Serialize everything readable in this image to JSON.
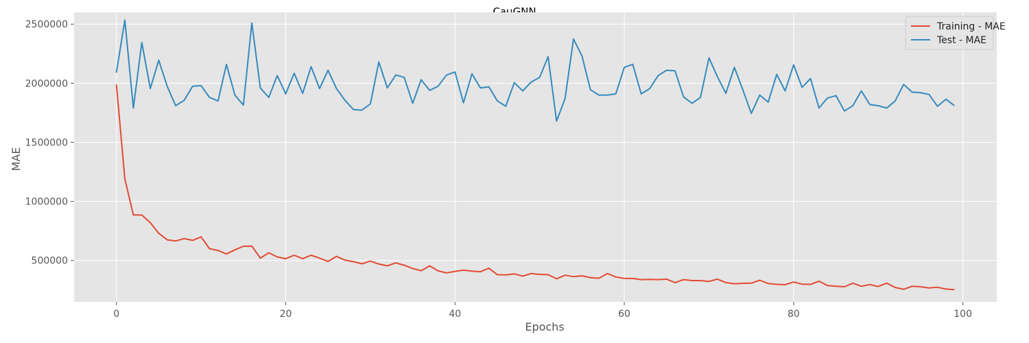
{
  "chart_data": {
    "type": "line",
    "title": "CauGNN",
    "xlabel": "Epochs",
    "ylabel": "MAE",
    "xlim": [
      -5,
      104
    ],
    "ylim": [
      150000,
      2600000
    ],
    "xticks": [
      0,
      20,
      40,
      60,
      80,
      100
    ],
    "yticks": [
      500000,
      1000000,
      1500000,
      2000000,
      2500000
    ],
    "grid": true,
    "legend": "top-right",
    "background": "#e5e5e5",
    "x": [
      0,
      1,
      2,
      3,
      4,
      5,
      6,
      7,
      8,
      9,
      10,
      11,
      12,
      13,
      14,
      15,
      16,
      17,
      18,
      19,
      20,
      21,
      22,
      23,
      24,
      25,
      26,
      27,
      28,
      29,
      30,
      31,
      32,
      33,
      34,
      35,
      36,
      37,
      38,
      39,
      40,
      41,
      42,
      43,
      44,
      45,
      46,
      47,
      48,
      49,
      50,
      51,
      52,
      53,
      54,
      55,
      56,
      57,
      58,
      59,
      60,
      61,
      62,
      63,
      64,
      65,
      66,
      67,
      68,
      69,
      70,
      71,
      72,
      73,
      74,
      75,
      76,
      77,
      78,
      79,
      80,
      81,
      82,
      83,
      84,
      85,
      86,
      87,
      88,
      89,
      90,
      91,
      92,
      93,
      94,
      95,
      96,
      97,
      98,
      99
    ],
    "series": [
      {
        "name": "Training - MAE",
        "color": "#e24a33",
        "values": [
          1990000,
          1190000,
          885000,
          885000,
          820000,
          730000,
          675000,
          665000,
          685000,
          670000,
          700000,
          600000,
          585000,
          555000,
          590000,
          620000,
          622000,
          520000,
          565000,
          530000,
          515000,
          545000,
          515000,
          545000,
          520000,
          492000,
          535000,
          503000,
          490000,
          472000,
          495000,
          470000,
          455000,
          480000,
          460000,
          432000,
          413000,
          455000,
          412000,
          395000,
          408000,
          418000,
          410000,
          405000,
          435000,
          380000,
          378000,
          387000,
          368000,
          390000,
          382000,
          380000,
          345000,
          375000,
          363000,
          370000,
          355000,
          350000,
          390000,
          360000,
          348000,
          348000,
          338000,
          340000,
          338000,
          342000,
          312000,
          338000,
          330000,
          330000,
          323000,
          342000,
          313000,
          303000,
          307000,
          308000,
          333000,
          305000,
          298000,
          295000,
          318000,
          300000,
          298000,
          325000,
          288000,
          282000,
          278000,
          308000,
          282000,
          296000,
          280000,
          308000,
          272000,
          256000,
          282000,
          278000,
          268000,
          273000,
          258000,
          253000
        ]
      },
      {
        "name": "Test - MAE",
        "color": "#348abd",
        "values": [
          2090000,
          2535000,
          1790000,
          2345000,
          1955000,
          2195000,
          1975000,
          1810000,
          1855000,
          1975000,
          1980000,
          1880000,
          1850000,
          2160000,
          1900000,
          1815000,
          2510000,
          1960000,
          1880000,
          2065000,
          1910000,
          2085000,
          1915000,
          2140000,
          1955000,
          2110000,
          1955000,
          1855000,
          1778000,
          1772000,
          1825000,
          2180000,
          1960000,
          2070000,
          2050000,
          1830000,
          2030000,
          1940000,
          1975000,
          2070000,
          2095000,
          1835000,
          2080000,
          1960000,
          1970000,
          1850000,
          1805000,
          2005000,
          1935000,
          2010000,
          2050000,
          2225000,
          1680000,
          1870000,
          2375000,
          2230000,
          1945000,
          1900000,
          1900000,
          1910000,
          2135000,
          2160000,
          1910000,
          1955000,
          2065000,
          2110000,
          2105000,
          1885000,
          1830000,
          1880000,
          2215000,
          2055000,
          1915000,
          2135000,
          1945000,
          1745000,
          1900000,
          1840000,
          2075000,
          1935000,
          2155000,
          1965000,
          2040000,
          1790000,
          1875000,
          1895000,
          1765000,
          1810000,
          1935000,
          1820000,
          1810000,
          1790000,
          1850000,
          1990000,
          1925000,
          1920000,
          1905000,
          1805000,
          1865000,
          1810000
        ]
      }
    ]
  }
}
